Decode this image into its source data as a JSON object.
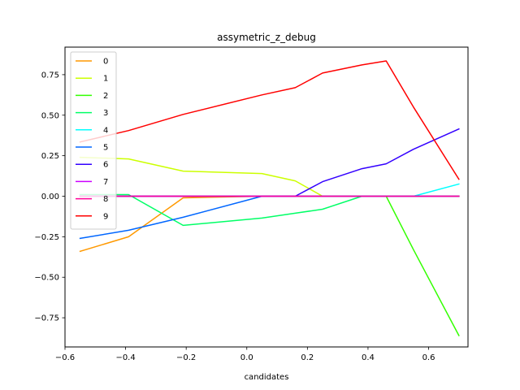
{
  "chart_data": {
    "type": "line",
    "title": "assymetric_z_debug",
    "xlabel": "candidates",
    "ylabel": "",
    "xlim": [
      -0.6,
      0.73
    ],
    "ylim": [
      -0.93,
      0.92
    ],
    "xticks": [
      -0.6,
      -0.4,
      -0.2,
      0.0,
      0.2,
      0.4,
      0.6
    ],
    "xtick_labels": [
      "−0.6",
      "−0.4",
      "−0.2",
      "0.0",
      "0.2",
      "0.4",
      "0.6"
    ],
    "yticks": [
      -0.75,
      -0.5,
      -0.25,
      0.0,
      0.25,
      0.5,
      0.75
    ],
    "ytick_labels": [
      "−0.75",
      "−0.50",
      "−0.25",
      "0.00",
      "0.25",
      "0.50",
      "0.75"
    ],
    "legend_position": "top-left",
    "series": [
      {
        "name": "0",
        "color": "#ff9900",
        "x": [
          -0.55,
          -0.39,
          -0.21,
          0.05,
          0.16,
          0.25,
          0.38,
          0.46,
          0.55,
          0.7
        ],
        "y": [
          -0.34,
          -0.25,
          -0.01,
          0.0,
          0.0,
          0.0,
          0.0,
          0.0,
          0.0,
          0.0
        ]
      },
      {
        "name": "1",
        "color": "#ccff00",
        "x": [
          -0.55,
          -0.39,
          -0.21,
          0.05,
          0.16,
          0.25,
          0.38,
          0.46,
          0.55,
          0.7
        ],
        "y": [
          0.24,
          0.23,
          0.155,
          0.14,
          0.095,
          0.0,
          0.0,
          0.0,
          0.0,
          0.0
        ]
      },
      {
        "name": "2",
        "color": "#33ff00",
        "x": [
          -0.55,
          -0.39,
          -0.21,
          0.05,
          0.16,
          0.25,
          0.38,
          0.46,
          0.55,
          0.7
        ],
        "y": [
          0.0,
          0.0,
          0.0,
          0.0,
          0.0,
          0.0,
          0.0,
          0.0,
          -0.33,
          -0.86
        ]
      },
      {
        "name": "3",
        "color": "#00ff66",
        "x": [
          -0.55,
          -0.39,
          -0.21,
          0.05,
          0.16,
          0.25,
          0.38,
          0.46,
          0.55,
          0.7
        ],
        "y": [
          0.01,
          0.01,
          -0.18,
          -0.135,
          -0.105,
          -0.08,
          0.0,
          0.0,
          0.0,
          0.0
        ]
      },
      {
        "name": "4",
        "color": "#00ffff",
        "x": [
          -0.55,
          -0.39,
          -0.21,
          0.05,
          0.16,
          0.25,
          0.38,
          0.46,
          0.55,
          0.7
        ],
        "y": [
          0.0,
          0.0,
          0.0,
          0.0,
          0.0,
          0.0,
          0.0,
          0.0,
          0.0,
          0.075
        ]
      },
      {
        "name": "5",
        "color": "#0066ff",
        "x": [
          -0.55,
          -0.39,
          -0.21,
          0.05,
          0.16,
          0.25,
          0.38,
          0.46,
          0.55,
          0.7
        ],
        "y": [
          -0.26,
          -0.21,
          -0.13,
          0.0,
          0.0,
          0.0,
          0.0,
          0.0,
          0.0,
          0.0
        ]
      },
      {
        "name": "6",
        "color": "#3300ff",
        "x": [
          -0.55,
          -0.39,
          -0.21,
          0.05,
          0.16,
          0.25,
          0.38,
          0.46,
          0.55,
          0.7
        ],
        "y": [
          0.0,
          0.0,
          0.0,
          0.0,
          0.0,
          0.09,
          0.17,
          0.2,
          0.29,
          0.415
        ]
      },
      {
        "name": "7",
        "color": "#cc00ff",
        "x": [
          -0.55,
          -0.39,
          -0.21,
          0.05,
          0.16,
          0.25,
          0.38,
          0.46,
          0.55,
          0.7
        ],
        "y": [
          0.0,
          0.0,
          0.0,
          0.0,
          0.0,
          0.0,
          0.0,
          0.0,
          0.0,
          0.0
        ]
      },
      {
        "name": "8",
        "color": "#ff0099",
        "x": [
          -0.55,
          -0.39,
          -0.21,
          0.05,
          0.16,
          0.25,
          0.38,
          0.46,
          0.55,
          0.7
        ],
        "y": [
          0.0,
          0.0,
          0.0,
          0.0,
          0.0,
          0.0,
          0.0,
          0.0,
          0.0,
          0.0
        ]
      },
      {
        "name": "9",
        "color": "#ff0000",
        "x": [
          -0.55,
          -0.39,
          -0.21,
          0.05,
          0.16,
          0.25,
          0.38,
          0.46,
          0.55,
          0.7
        ],
        "y": [
          0.335,
          0.405,
          0.505,
          0.625,
          0.67,
          0.76,
          0.81,
          0.835,
          0.55,
          0.105
        ]
      }
    ]
  }
}
